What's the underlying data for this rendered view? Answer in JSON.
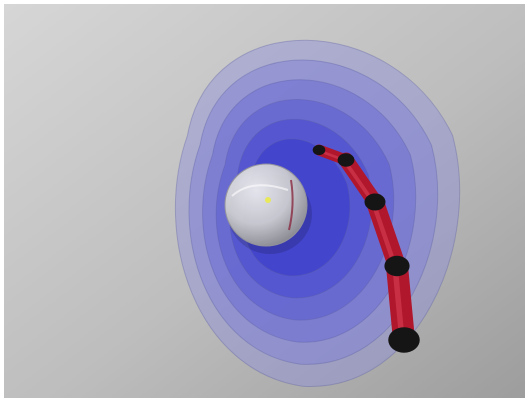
{
  "scene": {
    "background": "#bdbdbd",
    "background_light": "#d6d6d6",
    "background_dark": "#9d9d9d",
    "frame_color": "#ffffff"
  },
  "workspace_layers": {
    "count": 6,
    "color_outer": "#8d8fd9",
    "color_inner": "#3c3dcc",
    "edge_color": "#5a5ca0"
  },
  "sphere": {
    "color": "#d2d2d2",
    "highlight": "#f3f3f3",
    "shadow": "#8a8a8a",
    "target_point_color": "#e8e85a",
    "path_color": "#8a2a40"
  },
  "robot_arm": {
    "link_color": "#b0162c",
    "link_dark": "#5a0812",
    "joint_color": "#151515",
    "joints": 5
  }
}
